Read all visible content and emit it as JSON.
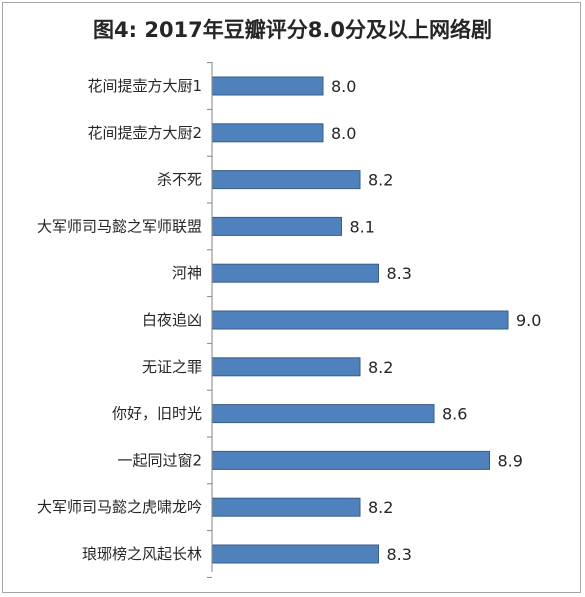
{
  "chart_data": {
    "type": "bar",
    "orientation": "horizontal",
    "title": "图4: 2017年豆瓣评分8.0分及以上网络剧",
    "categories": [
      "花间提壶方大厨1",
      "花间提壶方大厨2",
      "杀不死",
      "大军师司马懿之军师联盟",
      "河神",
      "白夜追凶",
      "无证之罪",
      "你好，旧时光",
      "一起同过窗2",
      "大军师司马懿之虎啸龙吟",
      "琅琊榜之风起长林"
    ],
    "values": [
      8.0,
      8.0,
      8.2,
      8.1,
      8.3,
      9.0,
      8.2,
      8.6,
      8.9,
      8.2,
      8.3
    ],
    "value_labels": [
      "8.0",
      "8.0",
      "8.2",
      "8.1",
      "8.3",
      "9.0",
      "8.2",
      "8.6",
      "8.9",
      "8.2",
      "8.3"
    ],
    "xlim": [
      7.4,
      9.1
    ],
    "grid": false,
    "legend": "none",
    "bar_color": "#4f81bd",
    "bar_border_color": "#385d8a",
    "axis_color": "#868686"
  }
}
